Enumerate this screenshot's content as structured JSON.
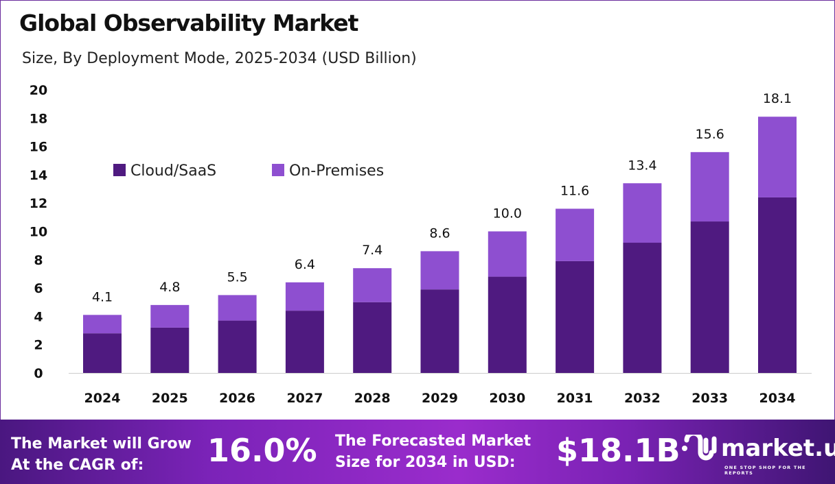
{
  "title": "Global Observability Market",
  "subtitle": "Size, By Deployment Mode, 2025-2034 (USD Billion)",
  "chart_data": {
    "type": "bar",
    "stacked": true,
    "categories": [
      "2024",
      "2025",
      "2026",
      "2027",
      "2028",
      "2029",
      "2030",
      "2031",
      "2032",
      "2033",
      "2034"
    ],
    "series": [
      {
        "name": "Cloud/SaaS",
        "color": "#4f1a80",
        "values": [
          2.8,
          3.2,
          3.7,
          4.4,
          5.0,
          5.9,
          6.8,
          7.9,
          9.2,
          10.7,
          12.4
        ]
      },
      {
        "name": "On-Premises",
        "color": "#8e4fd0",
        "values": [
          1.3,
          1.6,
          1.8,
          2.0,
          2.4,
          2.7,
          3.2,
          3.7,
          4.2,
          4.9,
          5.7
        ]
      }
    ],
    "totals": [
      "4.1",
      "4.8",
      "5.5",
      "6.4",
      "7.4",
      "8.6",
      "10.0",
      "11.6",
      "13.4",
      "15.6",
      "18.1"
    ],
    "yticks": [
      "0",
      "2",
      "4",
      "6",
      "8",
      "10",
      "12",
      "14",
      "16",
      "18",
      "20"
    ],
    "ylim": [
      0,
      20
    ],
    "grid": false,
    "legend": "top-left"
  },
  "footer": {
    "cagr_label_1": "The Market will Grow",
    "cagr_label_2": "At the CAGR of:",
    "cagr_value": "16.0%",
    "forecast_label_1": "The Forecasted Market",
    "forecast_label_2": "Size for 2034 in USD:",
    "forecast_value": "$18.1B",
    "logo_text": "market.us",
    "logo_tagline": "ONE STOP SHOP FOR THE REPORTS"
  }
}
